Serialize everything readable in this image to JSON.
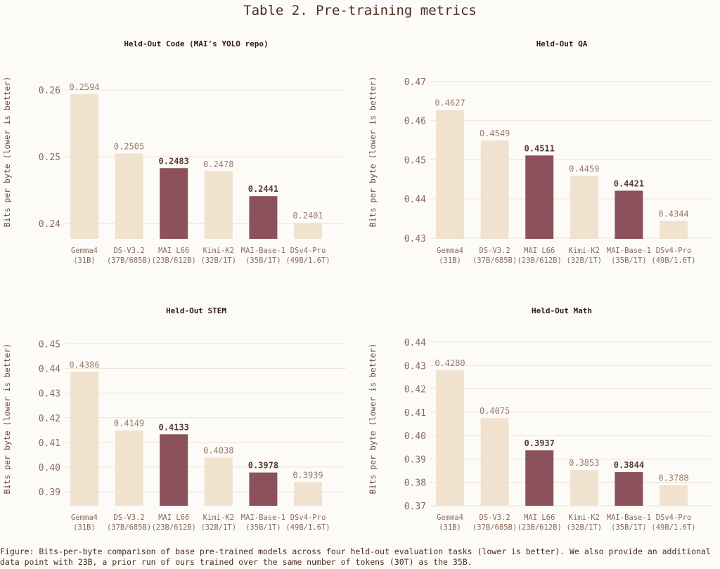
{
  "title": "Table 2. Pre-training metrics",
  "caption": "Figure: Bits-per-byte comparison of base pre-trained models across four held-out evaluation tasks (lower is better). We also provide an additional data point with 23B, a prior run of ours trained over the same number of tokens (30T) as the 35B.",
  "colors": {
    "highlight": "#8b525c",
    "base": "#f1e2cf",
    "grid": "#ece3d4"
  },
  "chart_data": [
    {
      "type": "bar",
      "title": "Held-Out Code (MAI's YOLO repo)",
      "ylabel": "Bits per byte (lower is better)",
      "categories": [
        [
          "Gemma4",
          "(31B)"
        ],
        [
          "DS-V3.2",
          "(37B/685B)"
        ],
        [
          "MAI L66",
          "(23B/612B)"
        ],
        [
          "Kimi-K2",
          "(32B/1T)"
        ],
        [
          "MAI-Base-1",
          "(35B/1T)"
        ],
        [
          "DSv4-Pro",
          "(49B/1.6T)"
        ]
      ],
      "values": [
        0.2594,
        0.2505,
        0.2483,
        0.2478,
        0.2441,
        0.2401
      ],
      "value_labels": [
        "0.2594",
        "0.2505",
        "0.2483",
        "0.2478",
        "0.2441",
        "0.2401"
      ],
      "highlight": [
        false,
        false,
        true,
        false,
        true,
        false
      ],
      "ylim": [
        0.2377,
        0.2638
      ],
      "yticks": [
        0.24,
        0.25,
        0.26
      ],
      "ytick_labels": [
        "0.24",
        "0.25",
        "0.26"
      ]
    },
    {
      "type": "bar",
      "title": "Held-Out QA",
      "ylabel": "Bits per byte (lower is better)",
      "categories": [
        [
          "Gemma4",
          "(31B)"
        ],
        [
          "DS-V3.2",
          "(37B/685B)"
        ],
        [
          "MAI L66",
          "(23B/612B)"
        ],
        [
          "Kimi-K2",
          "(32B/1T)"
        ],
        [
          "MAI-Base-1",
          "(35B/1T)"
        ],
        [
          "DSv4-Pro",
          "(49B/1.6T)"
        ]
      ],
      "values": [
        0.4627,
        0.4549,
        0.4511,
        0.4459,
        0.4421,
        0.4344
      ],
      "value_labels": [
        "0.4627",
        "0.4549",
        "0.4511",
        "0.4459",
        "0.4421",
        "0.4344"
      ],
      "highlight": [
        false,
        false,
        true,
        false,
        true,
        false
      ],
      "ylim": [
        0.4298,
        0.4743
      ],
      "yticks": [
        0.43,
        0.44,
        0.45,
        0.46,
        0.47
      ],
      "ytick_labels": [
        "0.43",
        "0.44",
        "0.45",
        "0.46",
        "0.47"
      ]
    },
    {
      "type": "bar",
      "title": "Held-Out STEM",
      "ylabel": "Bits per byte (lower is better)",
      "categories": [
        [
          "Gemma4",
          "(31B)"
        ],
        [
          "DS-V3.2",
          "(37B/685B)"
        ],
        [
          "MAI L66",
          "(23B/612B)"
        ],
        [
          "Kimi-K2",
          "(32B/1T)"
        ],
        [
          "MAI-Base-1",
          "(35B/1T)"
        ],
        [
          "DSv4-Pro",
          "(49B/1.6T)"
        ]
      ],
      "values": [
        0.4386,
        0.4149,
        0.4133,
        0.4038,
        0.3978,
        0.3939
      ],
      "value_labels": [
        "0.4386",
        "0.4149",
        "0.4133",
        "0.4038",
        "0.3978",
        "0.3939"
      ],
      "highlight": [
        false,
        false,
        true,
        false,
        true,
        false
      ],
      "ylim": [
        0.3843,
        0.455
      ],
      "yticks": [
        0.39,
        0.4,
        0.41,
        0.42,
        0.43,
        0.44,
        0.45
      ],
      "ytick_labels": [
        "0.39",
        "0.40",
        "0.41",
        "0.42",
        "0.43",
        "0.44",
        "0.45"
      ]
    },
    {
      "type": "bar",
      "title": "Held-Out Math",
      "ylabel": "Bits per byte (lower is better)",
      "categories": [
        [
          "Gemma4",
          "(31B)"
        ],
        [
          "DS-V3.2",
          "(37B/685B)"
        ],
        [
          "MAI L66",
          "(23B/612B)"
        ],
        [
          "Kimi-K2",
          "(32B/1T)"
        ],
        [
          "MAI-Base-1",
          "(35B/1T)"
        ],
        [
          "DSv4-Pro",
          "(49B/1.6T)"
        ]
      ],
      "values": [
        0.428,
        0.4075,
        0.3937,
        0.3853,
        0.3844,
        0.3788
      ],
      "value_labels": [
        "0.4280",
        "0.4075",
        "0.3937",
        "0.3853",
        "0.3844",
        "0.3788"
      ],
      "highlight": [
        false,
        false,
        true,
        false,
        true,
        false
      ],
      "ylim": [
        0.37,
        0.4445
      ],
      "yticks": [
        0.37,
        0.38,
        0.39,
        0.4,
        0.41,
        0.42,
        0.43,
        0.44
      ],
      "ytick_labels": [
        "0.37",
        "0.38",
        "0.39",
        "0.40",
        "0.41",
        "0.42",
        "0.43",
        "0.44"
      ]
    }
  ]
}
